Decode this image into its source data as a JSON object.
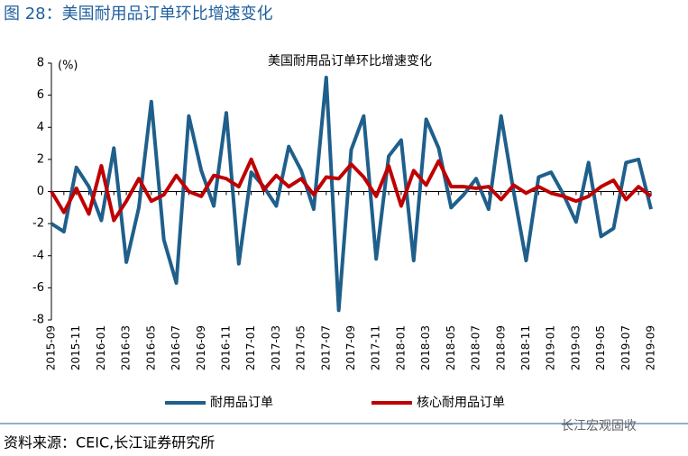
{
  "header": {
    "title": "图 28：美国耐用品订单环比增速变化"
  },
  "chart_data": {
    "type": "line",
    "title": "美国耐用品订单环比增速变化",
    "y_label": "(%)",
    "categories": [
      "2015-09",
      null,
      "2015-11",
      null,
      "2016-01",
      null,
      "2016-03",
      null,
      "2016-05",
      null,
      "2016-07",
      null,
      "2016-09",
      null,
      "2016-11",
      null,
      "2017-01",
      null,
      "2017-03",
      null,
      "2017-05",
      null,
      "2017-07",
      null,
      "2017-09",
      null,
      "2017-11",
      null,
      "2018-01",
      null,
      "2018-03",
      null,
      "2018-05",
      null,
      "2018-07",
      null,
      "2018-09",
      null,
      "2018-11",
      null,
      "2019-01",
      null,
      "2019-03",
      null,
      "2019-05",
      null,
      "2019-07",
      null,
      "2019-09"
    ],
    "series": [
      {
        "name": "耐用品订单",
        "color": "#1f5f8b",
        "values": [
          -2.0,
          -2.5,
          1.5,
          0.3,
          -1.8,
          2.7,
          -4.4,
          -1.0,
          5.6,
          -3.0,
          -5.7,
          4.7,
          1.3,
          -0.9,
          4.9,
          -4.5,
          1.2,
          0.3,
          -0.9,
          2.8,
          1.3,
          -1.1,
          7.1,
          -7.4,
          2.6,
          4.7,
          -4.2,
          2.2,
          3.2,
          -4.3,
          4.5,
          2.7,
          -1.0,
          -0.2,
          0.8,
          -1.1,
          4.7,
          0.0,
          -4.3,
          0.9,
          1.2,
          -0.2,
          -1.9,
          1.8,
          -2.8,
          -2.3,
          1.8,
          2.0,
          -1.1
        ]
      },
      {
        "name": "核心耐用品订单",
        "color": "#c00000",
        "values": [
          0.0,
          -1.3,
          0.2,
          -1.4,
          1.6,
          -1.8,
          -0.6,
          0.8,
          -0.6,
          -0.2,
          1.0,
          0.0,
          -0.3,
          1.0,
          0.8,
          0.3,
          2.0,
          0.1,
          1.0,
          0.3,
          0.8,
          -0.2,
          0.9,
          0.8,
          1.7,
          0.9,
          -0.3,
          1.6,
          -0.9,
          1.3,
          0.4,
          1.9,
          0.3,
          0.3,
          0.2,
          0.3,
          -0.5,
          0.4,
          -0.1,
          0.3,
          -0.1,
          -0.3,
          -0.6,
          -0.3,
          0.3,
          0.7,
          -0.5,
          0.3,
          -0.3
        ]
      }
    ],
    "ylim": [
      -8,
      8
    ],
    "yticks": [
      -8,
      -6,
      -4,
      -2,
      0,
      2,
      4,
      6,
      8
    ]
  },
  "footer": {
    "source": "资料来源：CEIC,长江证券研究所",
    "watermark": "长江宏观固收"
  }
}
